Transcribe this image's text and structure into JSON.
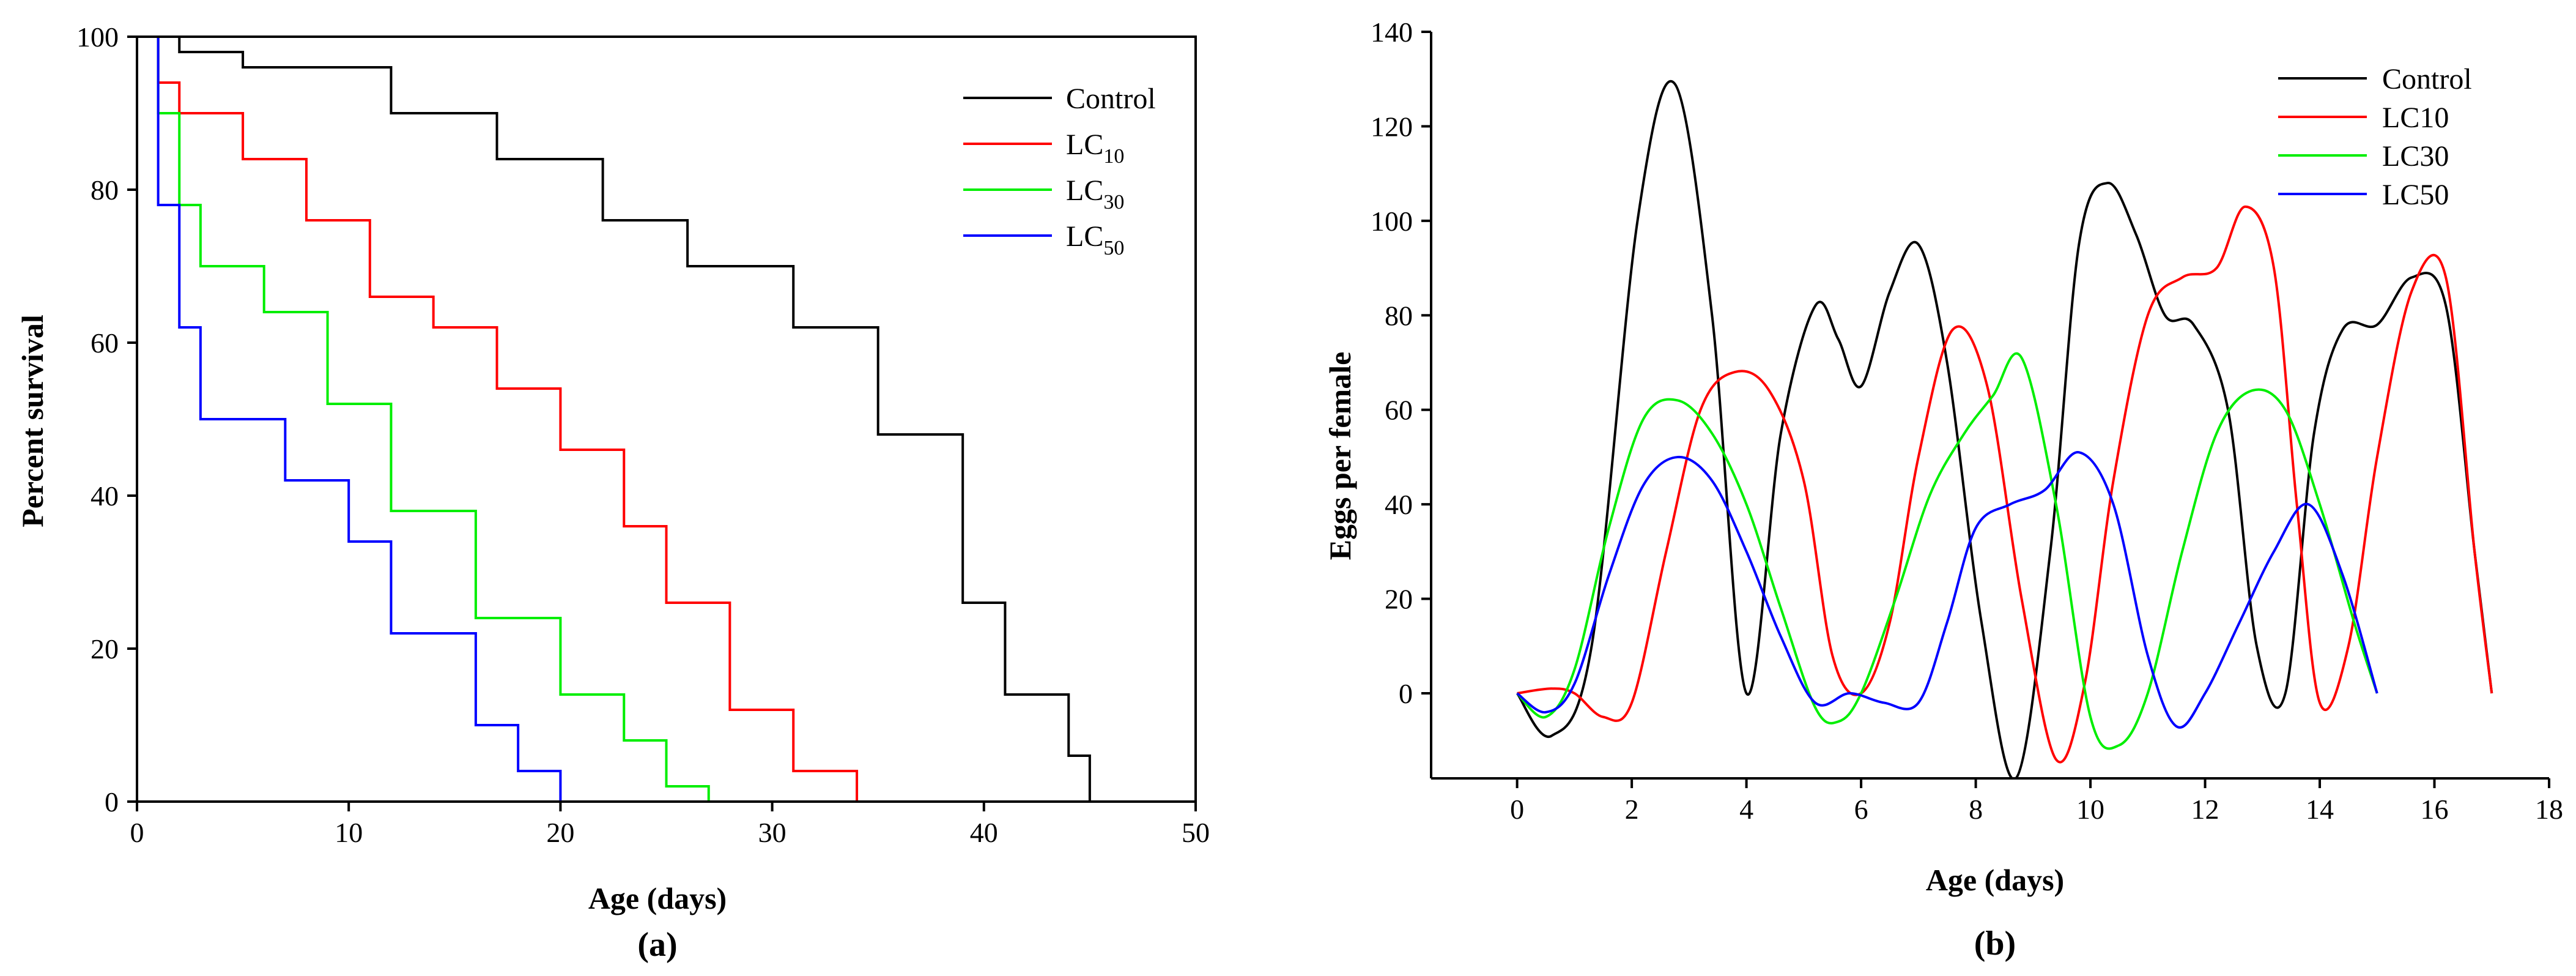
{
  "chart_data": [
    {
      "panel": "(a)",
      "type": "line",
      "step": true,
      "title": "",
      "xlabel": "Age (days)",
      "ylabel": "Percent survival",
      "xlim": [
        0,
        50
      ],
      "ylim": [
        0,
        100
      ],
      "xticks": [
        0,
        10,
        20,
        30,
        40,
        50
      ],
      "yticks": [
        0,
        20,
        40,
        60,
        80,
        100
      ],
      "legend_position": "top-right",
      "series": [
        {
          "name": "Control",
          "label_main": "Control",
          "label_sub": "",
          "color": "#000000",
          "x": [
            0,
            1,
            2,
            3,
            4,
            5,
            6,
            7,
            8,
            9,
            10,
            11,
            12,
            13,
            14,
            15,
            16,
            17,
            18,
            19,
            20,
            21,
            22,
            23,
            24,
            25,
            26,
            27,
            28,
            29,
            30,
            31,
            32,
            33,
            34,
            35,
            36,
            37,
            38,
            39,
            40,
            41,
            42,
            43,
            44,
            45
          ],
          "y": [
            100,
            100,
            98,
            98,
            98,
            96,
            96,
            96,
            96,
            96,
            96,
            96,
            90,
            90,
            90,
            90,
            90,
            84,
            84,
            84,
            84,
            84,
            76,
            76,
            76,
            76,
            70,
            70,
            70,
            70,
            70,
            62,
            62,
            62,
            62,
            48,
            48,
            48,
            48,
            26,
            26,
            14,
            14,
            14,
            6,
            0
          ]
        },
        {
          "name": "LC10",
          "label_main": "LC",
          "label_sub": "10",
          "color": "#ff0000",
          "x": [
            0,
            1,
            2,
            3,
            4,
            5,
            6,
            7,
            8,
            9,
            10,
            11,
            12,
            13,
            14,
            15,
            16,
            17,
            18,
            19,
            20,
            21,
            22,
            23,
            24,
            25,
            26,
            27,
            28,
            29,
            30,
            31,
            32,
            33,
            34
          ],
          "y": [
            100,
            94,
            90,
            90,
            90,
            84,
            84,
            84,
            76,
            76,
            76,
            66,
            66,
            66,
            62,
            62,
            62,
            54,
            54,
            54,
            46,
            46,
            46,
            36,
            36,
            26,
            26,
            26,
            12,
            12,
            12,
            4,
            4,
            4,
            0
          ]
        },
        {
          "name": "LC30",
          "label_main": "LC",
          "label_sub": "30",
          "color": "#00ee00",
          "x": [
            0,
            1,
            2,
            3,
            4,
            5,
            6,
            7,
            8,
            9,
            10,
            11,
            12,
            13,
            14,
            15,
            16,
            17,
            18,
            19,
            20,
            21,
            22,
            23,
            24,
            25,
            26,
            27
          ],
          "y": [
            100,
            90,
            78,
            70,
            70,
            70,
            64,
            64,
            64,
            52,
            52,
            52,
            38,
            38,
            38,
            38,
            24,
            24,
            24,
            24,
            14,
            14,
            14,
            8,
            8,
            2,
            2,
            0
          ]
        },
        {
          "name": "LC50",
          "label_main": "LC",
          "label_sub": "50",
          "color": "#0000ff",
          "x": [
            0,
            1,
            2,
            3,
            4,
            5,
            6,
            7,
            8,
            9,
            10,
            11,
            12,
            13,
            14,
            15,
            16,
            17,
            18,
            19,
            20
          ],
          "y": [
            100,
            78,
            62,
            50,
            50,
            50,
            50,
            42,
            42,
            42,
            34,
            34,
            22,
            22,
            22,
            22,
            10,
            10,
            4,
            4,
            0
          ]
        }
      ]
    },
    {
      "panel": "(b)",
      "type": "line",
      "smooth": true,
      "title": "",
      "xlabel": "Age (days)",
      "ylabel": "Eggs per female",
      "xlim": [
        -1.5,
        18
      ],
      "ylim": [
        -18,
        140
      ],
      "xticks": [
        0,
        2,
        4,
        6,
        8,
        10,
        12,
        14,
        16,
        18
      ],
      "yticks": [
        0,
        20,
        40,
        60,
        80,
        100,
        120,
        140
      ],
      "legend_position": "top-right",
      "series": [
        {
          "name": "Control",
          "color": "#000000",
          "x": [
            0,
            0.6,
            1.3,
            2.1,
            2.75,
            3.4,
            4.0,
            4.6,
            5.2,
            5.6,
            6.0,
            6.5,
            7.0,
            7.5,
            8.1,
            8.7,
            9.3,
            9.8,
            10.3,
            10.8,
            11.3,
            11.8,
            12.4,
            12.9,
            13.4,
            13.9,
            14.4,
            15.0,
            15.6,
            16.2,
            16.7,
            17.0
          ],
          "y": [
            0,
            -9,
            10,
            100,
            129,
            80,
            0,
            55,
            82,
            75,
            65,
            85,
            95,
            70,
            15,
            -18,
            30,
            95,
            108,
            97,
            80,
            78,
            60,
            10,
            0,
            55,
            77,
            78,
            88,
            82,
            30,
            0
          ]
        },
        {
          "name": "LC10",
          "color": "#ff0000",
          "x": [
            0,
            0.6,
            1.0,
            1.5,
            2.0,
            2.6,
            3.2,
            3.8,
            4.4,
            5.0,
            5.5,
            6.0,
            6.5,
            7.0,
            7.6,
            8.2,
            8.8,
            9.4,
            9.9,
            10.4,
            11.0,
            11.6,
            12.2,
            12.7,
            13.2,
            13.6,
            14.0,
            14.5,
            15.0,
            15.6,
            16.2,
            16.7,
            17.0
          ],
          "y": [
            0,
            1,
            0,
            -5,
            -2,
            30,
            60,
            68,
            64,
            45,
            8,
            0,
            15,
            50,
            77,
            65,
            20,
            -14,
            2,
            45,
            80,
            88,
            90,
            103,
            90,
            40,
            -2,
            10,
            50,
            85,
            88,
            30,
            0
          ]
        },
        {
          "name": "LC30",
          "color": "#00ee00",
          "x": [
            0,
            0.5,
            1.0,
            1.6,
            2.2,
            2.8,
            3.4,
            4.0,
            4.6,
            5.2,
            5.6,
            6.0,
            6.6,
            7.2,
            7.8,
            8.3,
            8.8,
            9.4,
            10.0,
            10.5,
            11.0,
            11.6,
            12.2,
            12.8,
            13.4,
            14.0,
            14.6,
            15.0
          ],
          "y": [
            0,
            -5,
            5,
            35,
            58,
            62,
            55,
            40,
            18,
            -3,
            -6,
            0,
            20,
            42,
            55,
            63,
            71,
            40,
            -5,
            -11,
            0,
            30,
            55,
            64,
            60,
            40,
            15,
            0
          ]
        },
        {
          "name": "LC50",
          "color": "#0000ff",
          "x": [
            0,
            0.5,
            1.0,
            1.6,
            2.2,
            2.8,
            3.4,
            4.0,
            4.6,
            5.2,
            5.8,
            6.4,
            7.0,
            7.5,
            8.0,
            8.6,
            9.2,
            9.8,
            10.4,
            11.0,
            11.5,
            12.0,
            12.6,
            13.2,
            13.8,
            14.4,
            15.0
          ],
          "y": [
            0,
            -4,
            2,
            25,
            44,
            50,
            45,
            30,
            12,
            -2,
            0,
            -2,
            -2,
            15,
            35,
            40,
            43,
            51,
            40,
            8,
            -7,
            0,
            15,
            30,
            40,
            25,
            0
          ]
        }
      ]
    }
  ],
  "panel_labels": {
    "a": "(a)",
    "b": "(b)"
  }
}
